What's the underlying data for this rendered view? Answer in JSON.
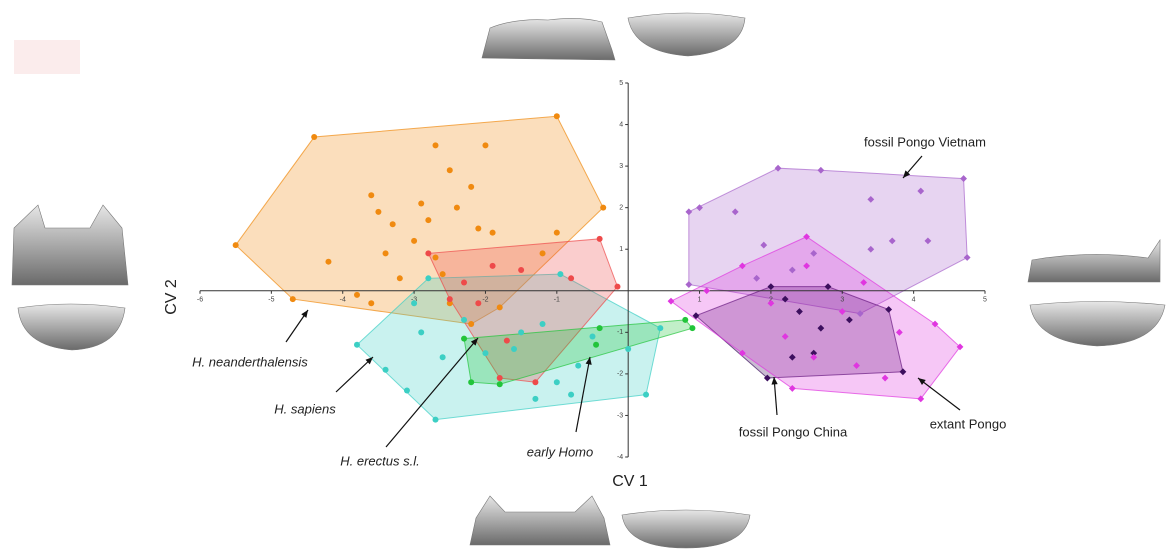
{
  "chart_data": {
    "type": "scatter",
    "xlabel": "CV 1",
    "ylabel": "CV 2",
    "xlim": [
      -6,
      5
    ],
    "ylim": [
      -4,
      5
    ],
    "xticks": [
      -6,
      -5,
      -4,
      -3,
      -2,
      -1,
      1,
      2,
      3,
      4,
      5
    ],
    "yticks": [
      -4,
      -3,
      -2,
      -1,
      1,
      2,
      3,
      4,
      5
    ],
    "series": [
      {
        "name": "H. neanderthalensis",
        "color": "#f08a10",
        "marker": "circle",
        "x": [
          -5.5,
          -4.4,
          -1.0,
          -0.35,
          -4.7,
          -3.6,
          -2.0,
          -2.7,
          -2.5,
          -3.6,
          -3.3,
          -2.8,
          -3.0,
          -2.7,
          -3.4,
          -4.2,
          -2.4,
          -2.1,
          -1.9,
          -1.0,
          -1.2,
          -3.2,
          -2.6,
          -3.8,
          -2.5,
          -2.2,
          -1.8,
          -2.9,
          -2.2,
          -3.5
        ],
        "y": [
          1.1,
          3.7,
          4.2,
          2.0,
          -0.2,
          -0.3,
          3.5,
          3.5,
          2.9,
          2.3,
          1.6,
          1.7,
          1.2,
          0.8,
          0.9,
          0.7,
          2.0,
          1.5,
          1.4,
          1.4,
          0.9,
          0.3,
          0.4,
          -0.1,
          -0.3,
          -0.8,
          -0.4,
          2.1,
          2.5,
          1.9
        ]
      },
      {
        "name": "H. sapiens",
        "color": "#3ccfc4",
        "marker": "circle",
        "x": [
          -3.8,
          -2.8,
          -0.95,
          0.45,
          0.25,
          -2.7,
          -3.4,
          -3.0,
          -2.3,
          -1.5,
          -1.2,
          -1.6,
          -2.0,
          -2.6,
          -3.1,
          -1.0,
          -0.7,
          -0.5,
          -2.9,
          -1.3,
          0.0,
          -0.8
        ],
        "y": [
          -1.3,
          0.3,
          0.4,
          -0.9,
          -2.5,
          -3.1,
          -1.9,
          -0.3,
          -0.7,
          -1.0,
          -0.8,
          -1.4,
          -1.5,
          -1.6,
          -2.4,
          -2.2,
          -1.8,
          -1.1,
          -1.0,
          -2.6,
          -1.4,
          -2.5
        ]
      },
      {
        "name": "H. erectus s.l.",
        "color": "#ee4a4a",
        "marker": "circle",
        "x": [
          -2.8,
          -0.4,
          -0.15,
          -1.3,
          -1.8,
          -2.5,
          -1.9,
          -1.5,
          -2.1,
          -1.7,
          -2.3,
          -0.8
        ],
        "y": [
          0.9,
          1.25,
          0.1,
          -2.2,
          -2.1,
          -0.2,
          0.6,
          0.5,
          -0.3,
          -1.2,
          0.2,
          0.3
        ]
      },
      {
        "name": "early Homo",
        "color": "#22c43a",
        "marker": "circle",
        "x": [
          -2.3,
          -1.8,
          0.9,
          0.8,
          -0.4,
          -0.45,
          -2.2
        ],
        "y": [
          -1.15,
          -2.25,
          -0.9,
          -0.7,
          -0.9,
          -1.3,
          -2.2
        ]
      },
      {
        "name": "fossil Pongo Vietnam",
        "color": "#a865cc",
        "marker": "diamond",
        "x": [
          0.85,
          2.1,
          4.7,
          4.75,
          3.25,
          0.85,
          1.0,
          1.5,
          2.7,
          3.4,
          3.7,
          4.1,
          4.2,
          2.6,
          3.4,
          1.8,
          2.3,
          1.9
        ],
        "y": [
          1.9,
          2.95,
          2.7,
          0.8,
          -0.55,
          0.15,
          2.0,
          1.9,
          2.9,
          2.2,
          1.2,
          2.4,
          1.2,
          0.9,
          1.0,
          0.3,
          0.5,
          1.1
        ]
      },
      {
        "name": "fossil Pongo China",
        "color": "#3c0f5e",
        "marker": "diamond",
        "x": [
          0.95,
          2.0,
          2.8,
          3.65,
          3.85,
          1.95,
          2.2,
          2.4,
          2.7,
          2.6,
          2.3,
          3.1
        ],
        "y": [
          -0.6,
          0.1,
          0.1,
          -0.45,
          -1.95,
          -2.1,
          -0.2,
          -0.5,
          -0.9,
          -1.5,
          -1.6,
          -0.7
        ]
      },
      {
        "name": "extant Pongo",
        "color": "#e036e0",
        "marker": "diamond",
        "x": [
          0.6,
          2.5,
          4.3,
          4.65,
          4.1,
          2.3,
          1.1,
          1.6,
          2.0,
          2.5,
          3.0,
          3.3,
          3.8,
          3.2,
          2.6,
          2.2,
          1.6,
          3.6
        ],
        "y": [
          -0.25,
          1.3,
          -0.8,
          -1.35,
          -2.6,
          -2.35,
          0.0,
          0.6,
          -0.3,
          0.6,
          -0.5,
          0.2,
          -1.0,
          -1.8,
          -1.6,
          -1.1,
          -1.5,
          -2.1
        ]
      }
    ]
  }
}
